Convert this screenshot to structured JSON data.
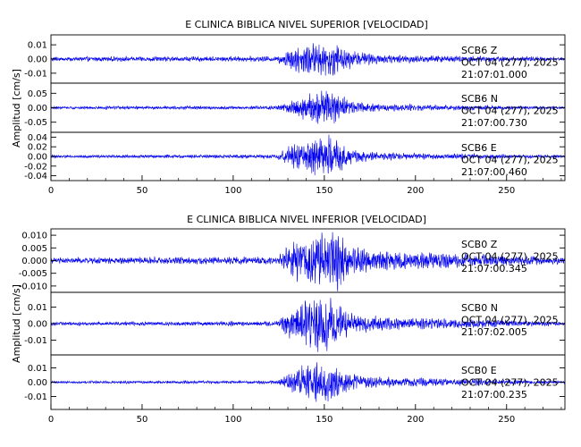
{
  "chart_data": [
    {
      "type": "line",
      "title": "E CLINICA BIBLICA NIVEL SUPERIOR [VELOCIDAD]",
      "ylabel": "Amplitud [cm/s]",
      "xlim": [
        0,
        282
      ],
      "xticks": [
        "0",
        "50",
        "100",
        "150",
        "200",
        "250"
      ],
      "color": "#0000ee",
      "panels": [
        {
          "channel": "SCB6 Z",
          "date": "OCT 04 (277), 2025",
          "time": "21:07:01.000",
          "ylim": [
            -0.017,
            0.017
          ],
          "yticks": [
            "0.01",
            "0.00",
            "-0.01"
          ],
          "envelope": [
            {
              "x": 0,
              "amp": 0.0016
            },
            {
              "x": 124,
              "amp": 0.0018
            },
            {
              "x": 130,
              "amp": 0.007
            },
            {
              "x": 140,
              "amp": 0.011
            },
            {
              "x": 150,
              "amp": 0.012
            },
            {
              "x": 157,
              "amp": 0.011
            },
            {
              "x": 165,
              "amp": 0.006
            },
            {
              "x": 180,
              "amp": 0.003
            },
            {
              "x": 282,
              "amp": 0.0013
            }
          ]
        },
        {
          "channel": "SCB6 N",
          "date": "OCT 04 (277), 2025",
          "time": "21:07:00.730",
          "ylim": [
            -0.085,
            0.085
          ],
          "yticks": [
            "0.05",
            "0.00",
            "-0.05"
          ],
          "envelope": [
            {
              "x": 0,
              "amp": 0.005
            },
            {
              "x": 124,
              "amp": 0.006
            },
            {
              "x": 130,
              "amp": 0.02
            },
            {
              "x": 140,
              "amp": 0.05
            },
            {
              "x": 150,
              "amp": 0.065
            },
            {
              "x": 157,
              "amp": 0.05
            },
            {
              "x": 165,
              "amp": 0.025
            },
            {
              "x": 180,
              "amp": 0.012
            },
            {
              "x": 282,
              "amp": 0.005
            }
          ]
        },
        {
          "channel": "SCB6 E",
          "date": "OCT 04 (277), 2025",
          "time": "21:07:00.460",
          "ylim": [
            -0.05,
            0.05
          ],
          "yticks": [
            "0.04",
            "0.02",
            "0.00",
            "-0.02",
            "-0.04"
          ],
          "envelope": [
            {
              "x": 0,
              "amp": 0.003
            },
            {
              "x": 124,
              "amp": 0.004
            },
            {
              "x": 130,
              "amp": 0.02
            },
            {
              "x": 140,
              "amp": 0.035
            },
            {
              "x": 150,
              "amp": 0.045
            },
            {
              "x": 157,
              "amp": 0.035
            },
            {
              "x": 165,
              "amp": 0.015
            },
            {
              "x": 180,
              "amp": 0.008
            },
            {
              "x": 282,
              "amp": 0.003
            }
          ]
        }
      ]
    },
    {
      "type": "line",
      "title": "E CLINICA BIBLICA NIVEL INFERIOR [VELOCIDAD]",
      "ylabel": "Amplitud [cm/s]",
      "xlim": [
        0,
        282
      ],
      "xticks": [
        "0",
        "50",
        "100",
        "150",
        "200",
        "250"
      ],
      "color": "#0000ee",
      "panels": [
        {
          "channel": "SCB0 Z",
          "date": "OCT 04 (277), 2025",
          "time": "21:07:00.345",
          "ylim": [
            -0.0125,
            0.0125
          ],
          "yticks": [
            "0.010",
            "0.005",
            "0.000",
            "-0.005",
            "-0.010"
          ],
          "envelope": [
            {
              "x": 0,
              "amp": 0.0012
            },
            {
              "x": 124,
              "amp": 0.0015
            },
            {
              "x": 130,
              "amp": 0.006
            },
            {
              "x": 140,
              "amp": 0.009
            },
            {
              "x": 150,
              "amp": 0.011
            },
            {
              "x": 157,
              "amp": 0.011
            },
            {
              "x": 165,
              "amp": 0.006
            },
            {
              "x": 180,
              "amp": 0.004
            },
            {
              "x": 282,
              "amp": 0.0012
            }
          ]
        },
        {
          "channel": "SCB0 N",
          "date": "OCT 04 (277), 2025",
          "time": "21:07:02.005",
          "ylim": [
            -0.019,
            0.019
          ],
          "yticks": [
            "0.01",
            "0.00",
            "-0.01"
          ],
          "envelope": [
            {
              "x": 0,
              "amp": 0.001
            },
            {
              "x": 124,
              "amp": 0.0015
            },
            {
              "x": 130,
              "amp": 0.008
            },
            {
              "x": 140,
              "amp": 0.014
            },
            {
              "x": 150,
              "amp": 0.016
            },
            {
              "x": 157,
              "amp": 0.012
            },
            {
              "x": 165,
              "amp": 0.007
            },
            {
              "x": 180,
              "amp": 0.004
            },
            {
              "x": 282,
              "amp": 0.0012
            }
          ]
        },
        {
          "channel": "SCB0 E",
          "date": "OCT 04 (277), 2025",
          "time": "21:07:00.235",
          "ylim": [
            -0.019,
            0.019
          ],
          "yticks": [
            "0.01",
            "0.00",
            "-0.01"
          ],
          "envelope": [
            {
              "x": 0,
              "amp": 0.0008
            },
            {
              "x": 124,
              "amp": 0.0012
            },
            {
              "x": 130,
              "amp": 0.006
            },
            {
              "x": 140,
              "amp": 0.012
            },
            {
              "x": 150,
              "amp": 0.015
            },
            {
              "x": 157,
              "amp": 0.011
            },
            {
              "x": 165,
              "amp": 0.006
            },
            {
              "x": 180,
              "amp": 0.0035
            },
            {
              "x": 282,
              "amp": 0.001
            }
          ]
        }
      ]
    }
  ]
}
